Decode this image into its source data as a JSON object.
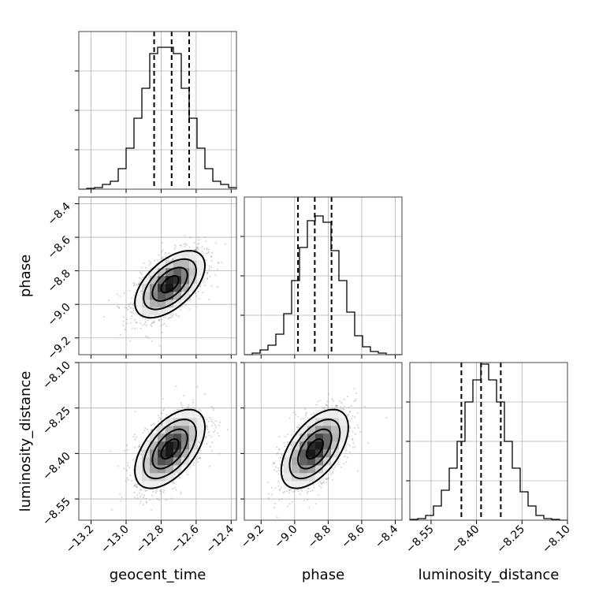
{
  "chart_data": {
    "type": "corner",
    "parameters": [
      {
        "name": "geocent_time",
        "label": "geocent_time",
        "range": [
          -13.27,
          -12.37
        ],
        "ticks": [
          -13.2,
          -13.0,
          -12.8,
          -12.6,
          -12.4
        ],
        "tick_labels": [
          "−13.2",
          "−13.0",
          "−12.8",
          "−12.6",
          "−12.4"
        ],
        "quantiles": [
          -12.84,
          -12.74,
          -12.64
        ],
        "mean": -12.75,
        "sd": 0.1
      },
      {
        "name": "phase",
        "label": "phase",
        "range": [
          -9.3,
          -8.36
        ],
        "ticks": [
          -9.2,
          -9.0,
          -8.8,
          -8.6,
          -8.4
        ],
        "tick_labels": [
          "−9.2",
          "−9.0",
          "−8.8",
          "−8.6",
          "−8.4"
        ],
        "quantiles": [
          -8.98,
          -8.88,
          -8.78
        ],
        "mean": -8.88,
        "sd": 0.1
      },
      {
        "name": "luminosity_distance",
        "label": "luminosity_distance",
        "range": [
          -8.62,
          -8.1
        ],
        "ticks": [
          -8.55,
          -8.4,
          -8.25,
          -8.1
        ],
        "tick_labels": [
          "−8.55",
          "−8.40",
          "−8.25",
          "−8.10"
        ],
        "quantiles": [
          -8.45,
          -8.385,
          -8.32
        ],
        "mean": -8.385,
        "sd": 0.065
      }
    ],
    "histograms": [
      {
        "param": "geocent_time",
        "bins": [
          -13.27,
          -13.225,
          -13.18,
          -13.135,
          -13.09,
          -13.045,
          -13.0,
          -12.955,
          -12.91,
          -12.865,
          -12.82,
          -12.775,
          -12.73,
          -12.685,
          -12.64,
          -12.595,
          -12.55,
          -12.505,
          -12.46,
          -12.415,
          -12.37
        ],
        "counts": [
          0.0,
          0.005,
          0.01,
          0.03,
          0.05,
          0.13,
          0.26,
          0.45,
          0.64,
          0.86,
          0.9,
          0.9,
          0.86,
          0.64,
          0.45,
          0.26,
          0.13,
          0.05,
          0.03,
          0.01
        ]
      },
      {
        "param": "phase",
        "bins": [
          -9.3,
          -9.253,
          -9.206,
          -9.159,
          -9.112,
          -9.065,
          -9.018,
          -8.971,
          -8.924,
          -8.877,
          -8.83,
          -8.783,
          -8.736,
          -8.689,
          -8.642,
          -8.595,
          -8.548,
          -8.501,
          -8.454,
          -8.407,
          -8.36
        ],
        "counts": [
          0.0,
          0.01,
          0.03,
          0.06,
          0.13,
          0.26,
          0.47,
          0.68,
          0.85,
          0.88,
          0.84,
          0.66,
          0.47,
          0.27,
          0.12,
          0.05,
          0.02,
          0.01,
          0.0,
          0.0
        ]
      },
      {
        "param": "luminosity_distance",
        "bins": [
          -8.62,
          -8.594,
          -8.568,
          -8.542,
          -8.516,
          -8.49,
          -8.464,
          -8.438,
          -8.412,
          -8.386,
          -8.36,
          -8.334,
          -8.308,
          -8.282,
          -8.256,
          -8.23,
          -8.204,
          -8.178,
          -8.152,
          -8.126,
          -8.1
        ],
        "counts": [
          0.005,
          0.01,
          0.03,
          0.09,
          0.19,
          0.33,
          0.5,
          0.75,
          0.89,
          0.99,
          0.89,
          0.75,
          0.5,
          0.33,
          0.18,
          0.09,
          0.03,
          0.01,
          0.005,
          0.0
        ]
      }
    ],
    "pairs": [
      {
        "x": "geocent_time",
        "y": "phase",
        "correlation": 0.55
      },
      {
        "x": "geocent_time",
        "y": "luminosity_distance",
        "correlation": 0.55
      },
      {
        "x": "phase",
        "y": "luminosity_distance",
        "correlation": 0.55
      }
    ],
    "contour_levels_sigma": [
      0.5,
      1.0,
      1.5,
      2.0
    ],
    "grid": true
  }
}
